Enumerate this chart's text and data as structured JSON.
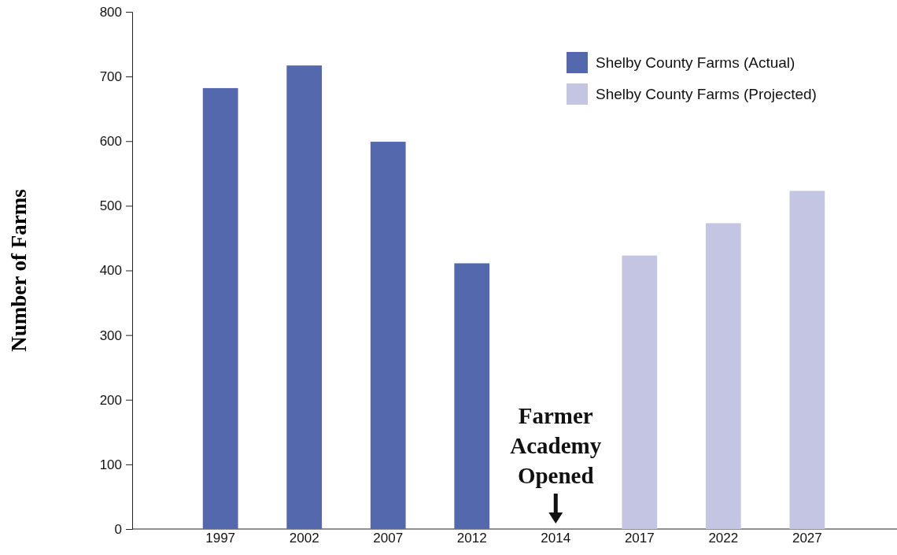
{
  "chart_data": {
    "type": "bar",
    "stacked": true,
    "ylabel": "Number of Farms",
    "categories": [
      "1997",
      "2002",
      "2007",
      "2012",
      "2014",
      "2017",
      "2022",
      "2027"
    ],
    "series": [
      {
        "name": "Shelby County Farms (Actual)",
        "color": "#5468ae",
        "values": [
          682,
          717,
          599,
          411,
          null,
          null,
          null,
          null
        ]
      },
      {
        "name": "Shelby County Farms (Projected)",
        "color": "#c3c5e3",
        "values": [
          null,
          null,
          null,
          null,
          null,
          423,
          473,
          523
        ]
      }
    ],
    "ylim": [
      0,
      800
    ],
    "yticks": [
      0,
      100,
      200,
      300,
      400,
      500,
      600,
      700,
      800
    ],
    "legend": "top right",
    "annotations": [
      "Farmer Academy Opened"
    ]
  }
}
